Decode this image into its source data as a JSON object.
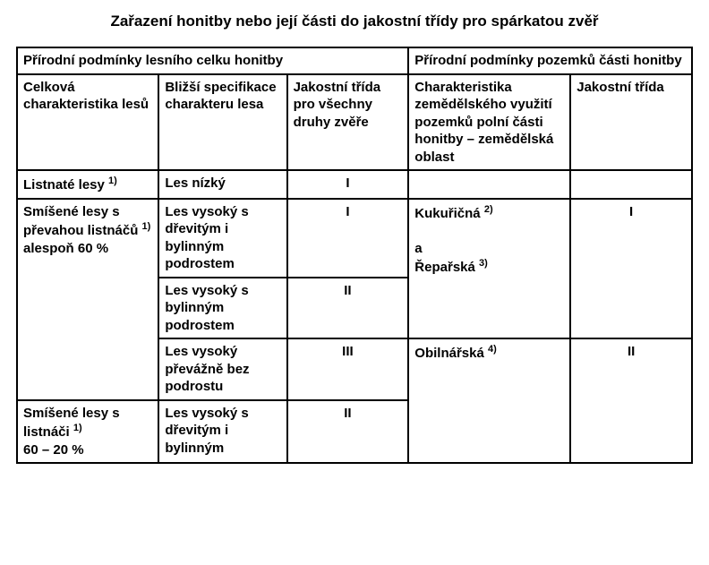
{
  "title": "Zařazení honitby nebo její části do jakostní třídy pro spárkatou zvěř",
  "colors": {
    "text": "#000000",
    "background": "#ffffff",
    "border": "#000000"
  },
  "typography": {
    "font_family": "Verdana, Geneva, sans-serif",
    "title_fontsize_pt": 13,
    "cell_fontsize_pt": 11,
    "bold": true
  },
  "table": {
    "column_widths_pct": [
      21,
      19,
      18,
      24,
      18
    ],
    "header_group_left": "Přírodní podmínky lesního celku honitby",
    "header_group_right": "Přírodní podmínky pozemků části honitby",
    "headers": {
      "c1": "Celková charakteristika lesů",
      "c2": "Bližší specifikace charakteru lesa",
      "c3": "Jakostní třída pro všechny druhy zvěře",
      "c4": "Charakteristika zemědělského využití pozemků polní části honitby – zemědělská oblast",
      "c5": "Jakostní třída"
    },
    "rows": [
      {
        "c1": "Listnaté lesy ",
        "c1_sup": "1)",
        "c2": "Les nízký",
        "c3": "I",
        "c4": "",
        "c5": ""
      },
      {
        "c1_line1": "Smíšené lesy s převahou listnáčů ",
        "c1_sup": "1)",
        "c1_line2": "alespoň 60 %",
        "c2": "Les vysoký s dřevitým i bylinným podrostem",
        "c3": "I",
        "c4_a": "Kukuřičná ",
        "c4_a_sup": "2)",
        "c4_sep": "a",
        "c4_b": "Řepařská ",
        "c4_b_sup": "3)",
        "c5": "I"
      },
      {
        "c2": "Les vysoký s bylinným podrostem",
        "c3": "II"
      },
      {
        "c2": "Les vysoký převážně bez podrostu",
        "c3": "III",
        "c4": "Obilnářská ",
        "c4_sup": "4)",
        "c5": "II"
      },
      {
        "c1_line1": "Smíšené lesy s listnáči ",
        "c1_sup": "1)",
        "c1_line2": "60 – 20 %",
        "c2": "Les vysoký s dřevitým i bylinným",
        "c3": "II"
      }
    ]
  }
}
